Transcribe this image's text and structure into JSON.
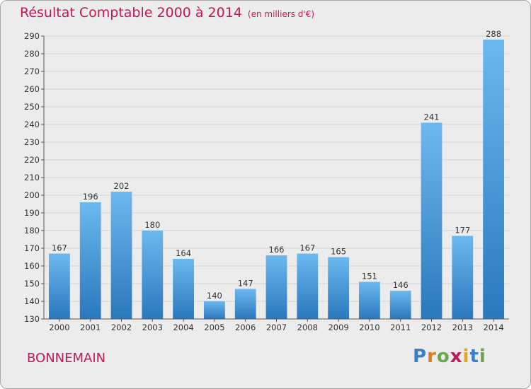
{
  "header": {
    "title": "Résultat Comptable 2000 à 2014",
    "subtitle": "(en milliers d'€)"
  },
  "footer": {
    "place": "BONNEMAIN",
    "logo_letters": [
      "P",
      "r",
      "o",
      "x",
      "i",
      "t",
      "i"
    ],
    "logo_colors": [
      "#3a7dc9",
      "#e07b1f",
      "#6aa84f",
      "#c2185b",
      "#e0a61f",
      "#3a7dc9",
      "#6aa84f"
    ]
  },
  "colors": {
    "bar_light": "#6cb8ef",
    "bar_dark": "#2a78bd",
    "grid": "#d4d4d4",
    "axis": "#555555",
    "title": "#c2185b",
    "label": "#333333"
  },
  "chart_data": {
    "type": "bar",
    "categories": [
      "2000",
      "2001",
      "2002",
      "2003",
      "2004",
      "2005",
      "2006",
      "2007",
      "2008",
      "2009",
      "2010",
      "2011",
      "2012",
      "2013",
      "2014"
    ],
    "values": [
      167,
      196,
      202,
      180,
      164,
      140,
      147,
      166,
      167,
      165,
      151,
      146,
      241,
      177,
      288
    ],
    "title": "Résultat Comptable 2000 à 2014",
    "subtitle": "(en milliers d'€)",
    "xlabel": "",
    "ylabel": "",
    "ylim": [
      130,
      290
    ],
    "yticks": [
      130,
      140,
      150,
      160,
      170,
      180,
      190,
      200,
      210,
      220,
      230,
      240,
      250,
      260,
      270,
      280,
      290
    ],
    "grid": true,
    "data_labels": true
  }
}
